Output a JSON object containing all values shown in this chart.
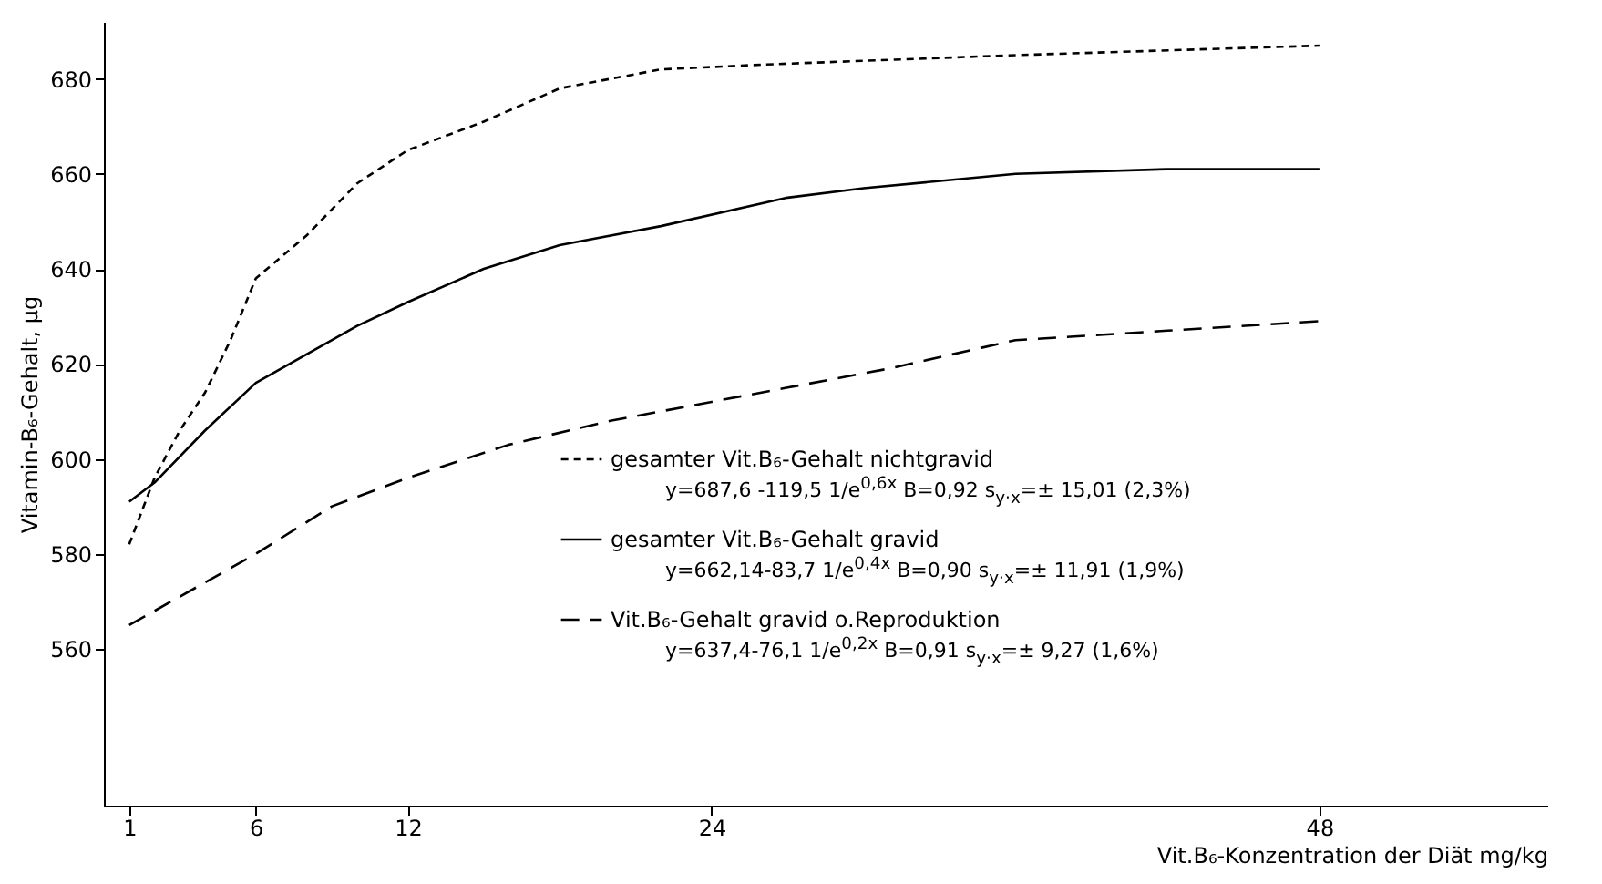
{
  "chart_data": {
    "type": "line",
    "xlabel": "Vit.B₆-Konzentration der Diät mg/kg",
    "ylabel": "Vitamin-B₆-Gehalt, µg",
    "xlim": [
      0,
      57
    ],
    "xticks": [
      1,
      6,
      12,
      24,
      48
    ],
    "ylim": [
      527,
      692
    ],
    "yticks": [
      560,
      580,
      600,
      620,
      640,
      660,
      680
    ],
    "grid": false,
    "legend": "bottom right",
    "marker": "none",
    "series": [
      {
        "name": "gesamter Vit.B₆-Gehalt nichtgravid",
        "color": "#000000",
        "line_style": "dotted",
        "x": [
          1,
          2,
          3,
          4,
          5,
          6,
          8,
          10,
          12,
          15,
          18,
          22,
          26,
          36,
          48
        ],
        "values": [
          582,
          596,
          606,
          614,
          625,
          638,
          647,
          658,
          665,
          671,
          678,
          682,
          683,
          685,
          687
        ]
      },
      {
        "name": "gesamter Vit.B₆-Gehalt gravid",
        "color": "#000000",
        "line_style": "solid",
        "x": [
          1,
          2,
          4,
          6,
          8,
          10,
          12,
          15,
          18,
          22,
          27,
          30,
          36,
          42,
          48
        ],
        "values": [
          591,
          595,
          606,
          616,
          622,
          628,
          633,
          640,
          645,
          649,
          655,
          657,
          660,
          661,
          661
        ]
      },
      {
        "name": "Vit.B₆-Gehalt gravid o.Reproduktion",
        "color": "#000000",
        "line_style": "dashed",
        "x": [
          1,
          3,
          6,
          9,
          12,
          16,
          20,
          24,
          27,
          31,
          36,
          42,
          48
        ],
        "values": [
          565,
          571,
          580,
          590,
          596,
          603,
          608,
          612,
          615,
          619,
          625,
          627,
          629
        ]
      }
    ],
    "annotations": [
      "y=687,6 -119,5 1/e$^{0,6x}$  B=0,92  s$_{y·x}$=± 15,01 (2,3%)",
      "y=662,14-83,7 1/e$^{0,4x}$  B=0,90  s$_{y·x}$=± 11,91 (1,9%)",
      "y=637,4-76,1 1/e$^{0,2x}$  B=0,91  s$_{y·x}$=± 9,27 (1,6%)"
    ]
  }
}
